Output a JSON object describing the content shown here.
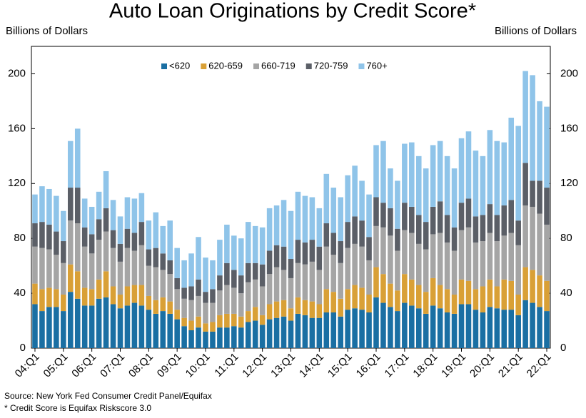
{
  "chart_data": {
    "type": "stacked_bar",
    "title": "Auto Loan Originations by Credit Score*",
    "y_label": "Billions of Dollars",
    "y2_label": "Billions of Dollars",
    "source": "Source: New York Fed Consumer Credit Panel/Equifax",
    "footnote": "* Credit Score is Equifax Riskscore 3.0",
    "categories": [
      "04:Q1",
      null,
      null,
      null,
      "05:Q1",
      null,
      null,
      null,
      "06:Q1",
      null,
      null,
      null,
      "07:Q1",
      null,
      null,
      null,
      "08:Q1",
      null,
      null,
      null,
      "09:Q1",
      null,
      null,
      null,
      "10:Q1",
      null,
      null,
      null,
      "11:Q1",
      null,
      null,
      null,
      "12:Q1",
      null,
      null,
      null,
      "13:Q1",
      null,
      null,
      null,
      "14:Q1",
      null,
      null,
      null,
      "15:Q1",
      null,
      null,
      null,
      "16:Q1",
      null,
      null,
      null,
      "17:Q1",
      null,
      null,
      null,
      "18:Q1",
      null,
      null,
      null,
      "19:Q1",
      null,
      null,
      null,
      "20:Q1",
      null,
      null,
      null,
      "21:Q1",
      null,
      null,
      null,
      "22:Q1"
    ],
    "series": [
      {
        "name": "<620",
        "color": "#1a6fa3",
        "values": [
          32,
          27,
          30,
          30,
          27,
          41,
          36,
          31,
          31,
          36,
          37,
          32,
          29,
          31,
          33,
          31,
          28,
          25,
          27,
          25,
          21,
          16,
          13,
          15,
          12,
          12,
          15,
          15,
          16,
          15,
          19,
          20,
          17,
          21,
          22,
          23,
          20,
          25,
          24,
          22,
          22,
          26,
          26,
          23,
          28,
          29,
          28,
          26,
          37,
          33,
          30,
          27,
          33,
          31,
          29,
          25,
          31,
          29,
          26,
          25,
          32,
          32,
          28,
          26,
          30,
          29,
          28,
          28,
          24,
          35,
          33,
          30,
          27
        ]
      },
      {
        "name": "620-659",
        "color": "#d9a036",
        "values": [
          15,
          16,
          14,
          13,
          12,
          20,
          20,
          13,
          12,
          14,
          19,
          13,
          10,
          14,
          13,
          15,
          10,
          10,
          10,
          9,
          7,
          6,
          7,
          8,
          6,
          7,
          9,
          10,
          9,
          8,
          8,
          10,
          7,
          11,
          12,
          12,
          9,
          12,
          11,
          12,
          10,
          17,
          15,
          13,
          15,
          17,
          16,
          13,
          22,
          21,
          17,
          15,
          21,
          19,
          17,
          16,
          20,
          17,
          17,
          14,
          18,
          17,
          15,
          19,
          20,
          16,
          22,
          21,
          15,
          24,
          24,
          23,
          22
        ]
      },
      {
        "name": "660-719",
        "color": "#a5a5a5",
        "values": [
          27,
          30,
          28,
          25,
          23,
          32,
          35,
          30,
          26,
          29,
          29,
          28,
          24,
          28,
          25,
          29,
          22,
          24,
          20,
          20,
          15,
          14,
          15,
          15,
          15,
          14,
          18,
          21,
          19,
          17,
          21,
          20,
          21,
          22,
          25,
          22,
          22,
          25,
          26,
          29,
          25,
          31,
          27,
          26,
          30,
          30,
          30,
          25,
          30,
          34,
          35,
          29,
          32,
          34,
          30,
          31,
          32,
          38,
          34,
          32,
          36,
          39,
          34,
          33,
          34,
          33,
          32,
          35,
          36,
          45,
          46,
          45,
          41
        ]
      },
      {
        "name": "720-759",
        "color": "#5b5f67",
        "values": [
          17,
          19,
          18,
          17,
          16,
          24,
          26,
          14,
          14,
          15,
          17,
          13,
          13,
          14,
          13,
          17,
          12,
          14,
          12,
          10,
          8,
          8,
          10,
          12,
          8,
          10,
          11,
          16,
          13,
          13,
          14,
          12,
          16,
          17,
          16,
          17,
          14,
          17,
          16,
          16,
          17,
          17,
          16,
          16,
          19,
          20,
          19,
          17,
          21,
          18,
          20,
          16,
          20,
          19,
          21,
          20,
          20,
          23,
          20,
          17,
          20,
          21,
          19,
          19,
          21,
          19,
          22,
          24,
          18,
          31,
          19,
          24,
          27
        ]
      },
      {
        "name": "760+",
        "color": "#8fc4e9",
        "values": [
          21,
          26,
          26,
          26,
          22,
          34,
          43,
          21,
          20,
          20,
          27,
          22,
          20,
          23,
          25,
          21,
          21,
          26,
          20,
          29,
          22,
          20,
          24,
          31,
          25,
          21,
          26,
          28,
          25,
          27,
          30,
          27,
          27,
          31,
          29,
          34,
          35,
          35,
          34,
          31,
          28,
          36,
          33,
          32,
          34,
          37,
          29,
          31,
          38,
          45,
          29,
          35,
          43,
          47,
          43,
          39,
          45,
          44,
          43,
          43,
          47,
          49,
          48,
          43,
          54,
          54,
          46,
          60,
          69,
          67,
          77,
          58,
          59
        ]
      }
    ],
    "ylim": [
      0,
      220
    ],
    "yticks": [
      0,
      40,
      80,
      120,
      160,
      200
    ],
    "y2lim": [
      0,
      220
    ],
    "y2ticks": [
      0,
      40,
      80,
      120,
      160,
      200
    ],
    "legend": "top"
  }
}
